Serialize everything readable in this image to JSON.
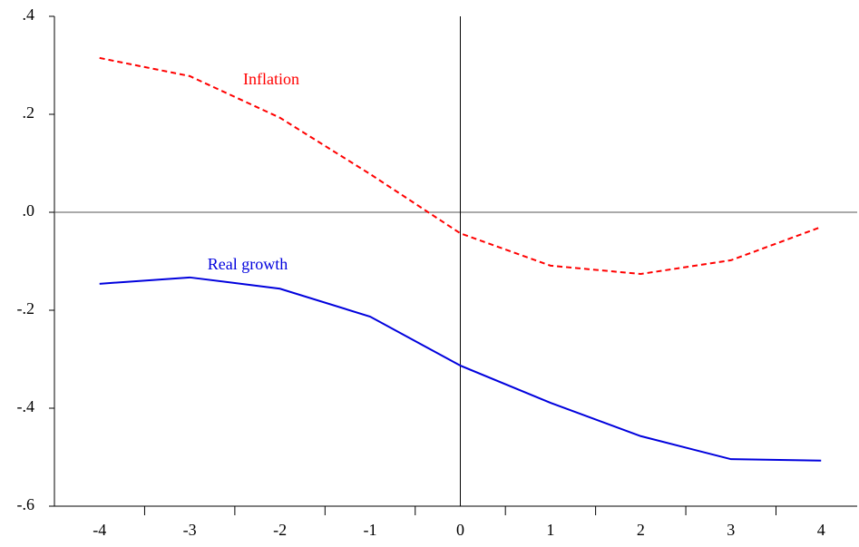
{
  "chart_data": {
    "type": "line",
    "x": [
      -4,
      -3,
      -2,
      -1,
      0,
      1,
      2,
      3,
      4
    ],
    "series": [
      {
        "name": "Inflation",
        "color": "#ff0000",
        "dash": true,
        "values": [
          0.315,
          0.278,
          0.193,
          0.078,
          -0.043,
          -0.109,
          -0.126,
          -0.098,
          -0.03
        ]
      },
      {
        "name": "Real growth",
        "color": "#0000dd",
        "dash": false,
        "values": [
          -0.146,
          -0.133,
          -0.156,
          -0.213,
          -0.313,
          -0.389,
          -0.457,
          -0.504,
          -0.507
        ]
      }
    ],
    "xlim": [
      -4.5,
      4.4
    ],
    "xticks": [
      -4,
      -3,
      -2,
      -1,
      0,
      1,
      2,
      3,
      4
    ],
    "minor_xticks": [
      -3.5,
      -2.5,
      -1.5,
      -0.5,
      0.5,
      1.5,
      2.5,
      3.5
    ],
    "ylim": [
      -0.6,
      0.4
    ],
    "yticks": [
      {
        "value": -0.6,
        "label": "-.6"
      },
      {
        "value": -0.4,
        "label": "-.4"
      },
      {
        "value": -0.2,
        "label": "-.2"
      },
      {
        "value": 0,
        "label": ".0"
      },
      {
        "value": 0.2,
        "label": ".2"
      },
      {
        "value": 0.4,
        "label": ".4"
      }
    ],
    "zero_lines": true
  }
}
